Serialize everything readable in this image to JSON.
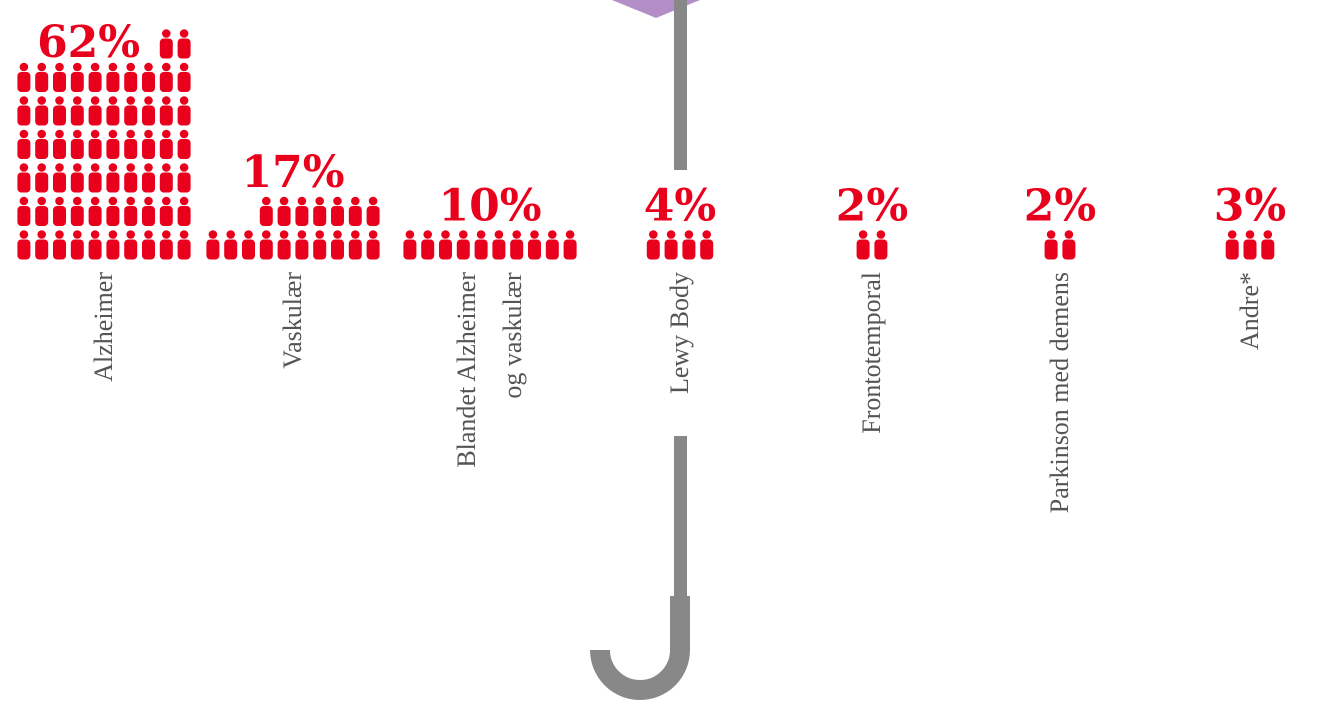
{
  "chart_data": {
    "type": "pictogram",
    "categories": [
      "Alzheimer",
      "Vaskulær",
      "Blandet Alzheimer\nog vaskulær",
      "Lewy Body",
      "Frontotemporal",
      "Parkinson med demens",
      "Andre*"
    ],
    "values": [
      62,
      17,
      10,
      4,
      2,
      2,
      3
    ],
    "value_labels": [
      "62%",
      "17%",
      "10%",
      "4%",
      "2%",
      "2%",
      "3%"
    ],
    "color": "#e8001c"
  }
}
